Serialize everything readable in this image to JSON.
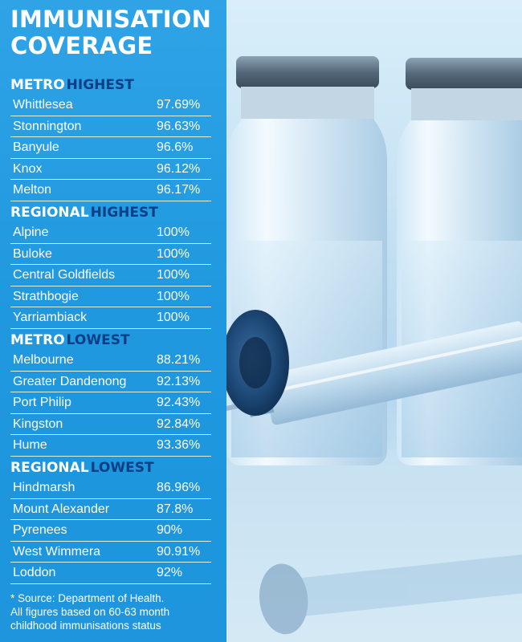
{
  "title": {
    "line1": "IMMUNISATION",
    "line2": "COVERAGE"
  },
  "sections": [
    {
      "key": "METRO",
      "rest": "HIGHEST",
      "rows": [
        {
          "name": "Whittlesea",
          "value": "97.69%"
        },
        {
          "name": "Stonnington",
          "value": "96.63%"
        },
        {
          "name": "Banyule",
          "value": "96.6%"
        },
        {
          "name": "Knox",
          "value": "96.12%"
        },
        {
          "name": "Melton",
          "value": "96.17%"
        }
      ]
    },
    {
      "key": "REGIONAL",
      "rest": "HIGHEST",
      "rows": [
        {
          "name": "Alpine",
          "value": "100%"
        },
        {
          "name": "Buloke",
          "value": "100%"
        },
        {
          "name": "Central Goldfields",
          "value": "100%"
        },
        {
          "name": "Strathbogie",
          "value": "100%"
        },
        {
          "name": "Yarriambiack",
          "value": "100%"
        }
      ]
    },
    {
      "key": "METRO",
      "rest": "LOWEST",
      "rows": [
        {
          "name": "Melbourne",
          "value": "88.21%"
        },
        {
          "name": "Greater Dandenong",
          "value": "92.13%"
        },
        {
          "name": "Port Philip",
          "value": "92.43%"
        },
        {
          "name": "Kingston",
          "value": "92.84%"
        },
        {
          "name": "Hume",
          "value": "93.36%"
        }
      ]
    },
    {
      "key": "REGIONAL",
      "rest": "LOWEST",
      "rows": [
        {
          "name": "Hindmarsh",
          "value": "86.96%"
        },
        {
          "name": "Mount Alexander",
          "value": "87.8%"
        },
        {
          "name": "Pyrenees",
          "value": "90%"
        },
        {
          "name": "West Wimmera",
          "value": "90.91%"
        },
        {
          "name": "Loddon",
          "value": "92%"
        }
      ]
    }
  ],
  "footnote": {
    "line1": "* Source: Department of Health.",
    "line2": "All figures based on 60-63 month",
    "line3": "childhood immunisations status"
  },
  "colors": {
    "panel": "#1f98df",
    "accent": "#0a3f86",
    "text": "#ffffff"
  }
}
